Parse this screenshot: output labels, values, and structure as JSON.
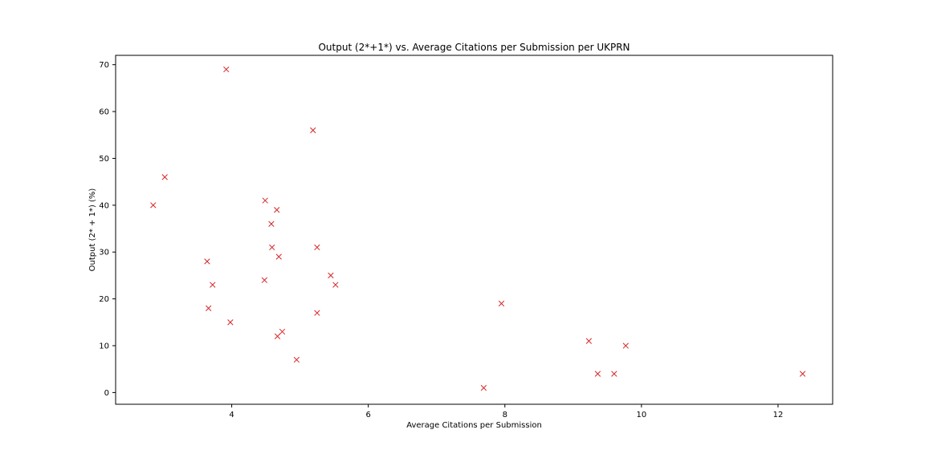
{
  "chart_data": {
    "type": "scatter",
    "title": "Output (2*+1*) vs. Average Citations per Submission per UKPRN",
    "xlabel": "Average Citations per Submission",
    "ylabel": "Output (2* + 1*) (%)",
    "xlim": [
      2.3,
      12.8
    ],
    "ylim": [
      -2.5,
      72
    ],
    "xticks": [
      4,
      6,
      8,
      10,
      12
    ],
    "yticks": [
      0,
      10,
      20,
      30,
      40,
      50,
      60,
      70
    ],
    "marker": "x",
    "color": "#d62728",
    "grid": false,
    "x": [
      3.92,
      5.19,
      3.02,
      2.85,
      4.49,
      4.66,
      4.58,
      4.59,
      5.25,
      4.69,
      3.64,
      5.45,
      3.72,
      5.52,
      4.48,
      7.95,
      3.66,
      5.25,
      3.98,
      4.74,
      4.67,
      4.95,
      7.69,
      9.23,
      9.77,
      9.36,
      9.6,
      12.36
    ],
    "y": [
      69,
      56,
      46,
      40,
      41,
      39,
      36,
      31,
      31,
      29,
      28,
      25,
      23,
      23,
      24,
      19,
      18,
      17,
      15,
      13,
      12,
      7,
      1,
      11,
      10,
      4,
      4,
      4
    ]
  }
}
